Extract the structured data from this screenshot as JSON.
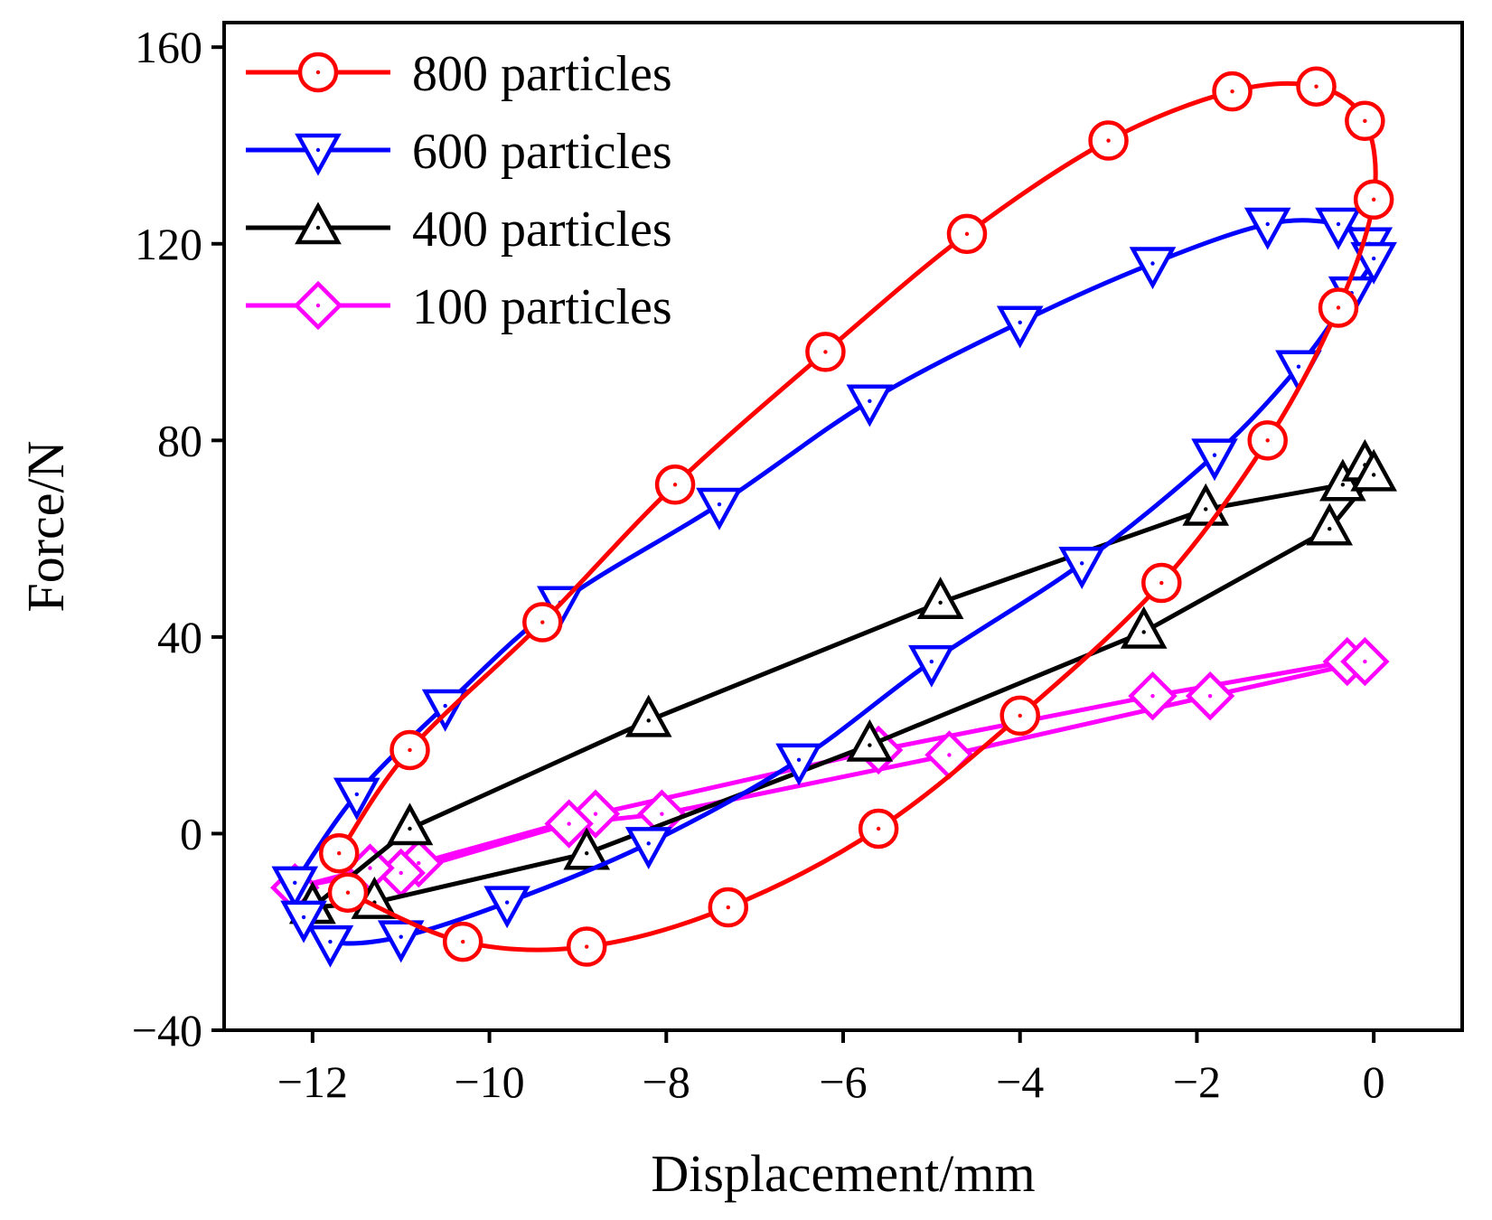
{
  "chart_data": {
    "type": "line",
    "title": "",
    "xlabel": "Displacement/mm",
    "ylabel": "Force/N",
    "xlim": [
      -13.0,
      1.0
    ],
    "ylim": [
      -40,
      165
    ],
    "xticks": [
      -12,
      -10,
      -8,
      -6,
      -4,
      -2,
      0
    ],
    "yticks": [
      -40,
      0,
      40,
      80,
      120,
      160
    ],
    "xtick_labels": [
      "−12",
      "−10",
      "−8",
      "−6",
      "−4",
      "−2",
      "0"
    ],
    "ytick_labels": [
      "−40",
      "0",
      "40",
      "80",
      "120",
      "160"
    ],
    "grid": false,
    "legend_position": "top-left",
    "series": [
      {
        "name": "800 particles",
        "color": "#ff0000",
        "marker": "circle",
        "x": [
          -11.7,
          -10.9,
          -9.4,
          -7.9,
          -6.2,
          -4.6,
          -3.0,
          -1.6,
          -0.65,
          -0.1,
          0.0,
          -0.4,
          -1.2,
          -2.4,
          -4.0,
          -5.6,
          -7.3,
          -8.9,
          -10.3,
          -11.6
        ],
        "y": [
          -4,
          17,
          43,
          71,
          98,
          122,
          141,
          151,
          152,
          145,
          129,
          107,
          80,
          51,
          24,
          1,
          -15,
          -23,
          -22,
          -12
        ]
      },
      {
        "name": "600 particles",
        "color": "#0000ff",
        "marker": "triangle-down",
        "x": [
          -12.2,
          -11.5,
          -10.5,
          -9.2,
          -7.4,
          -5.7,
          -4.0,
          -2.5,
          -1.2,
          -0.4,
          -0.05,
          0.0,
          -0.25,
          -0.85,
          -1.8,
          -3.3,
          -5.0,
          -6.5,
          -8.2,
          -9.8,
          -11.0,
          -11.8,
          -12.1
        ],
        "y": [
          -10,
          8,
          26,
          47,
          67,
          88,
          104,
          116,
          124,
          124,
          120,
          117,
          110,
          95,
          77,
          55,
          35,
          15,
          -2,
          -14,
          -21,
          -22,
          -17
        ]
      },
      {
        "name": "400 particles",
        "color": "#000000",
        "marker": "triangle-up",
        "x": [
          -12.0,
          -10.9,
          -8.2,
          -4.9,
          -1.9,
          -0.35,
          -0.1,
          0.0,
          -0.5,
          -2.6,
          -5.7,
          -8.9,
          -11.3,
          -12.0
        ],
        "y": [
          -15,
          1,
          23,
          47,
          66,
          71,
          75,
          73,
          62,
          41,
          18,
          -4,
          -14,
          -15
        ]
      },
      {
        "name": "100 particles",
        "color": "#ff00ff",
        "marker": "diamond",
        "x": [
          -12.2,
          -10.8,
          -8.8,
          -5.6,
          -2.5,
          -0.3,
          -0.1,
          -1.85,
          -4.8,
          -8.05,
          -9.1,
          -11.0,
          -11.35,
          -12.2
        ],
        "y": [
          -11,
          -6,
          4,
          17,
          28,
          35,
          35,
          28,
          16,
          4,
          2,
          -8,
          -7,
          -11
        ]
      }
    ]
  }
}
